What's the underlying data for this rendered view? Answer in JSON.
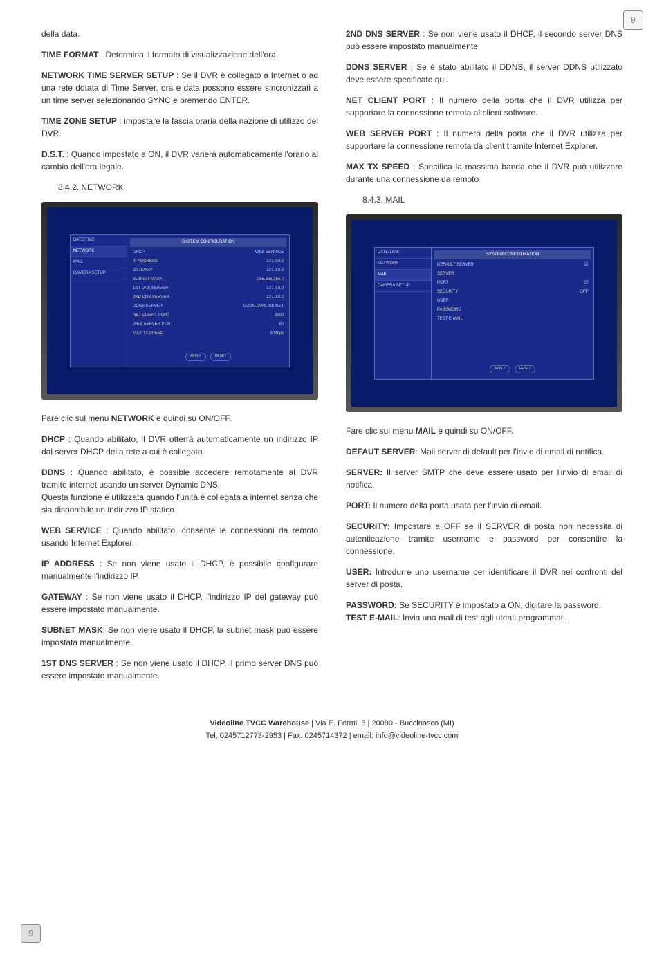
{
  "page_number": "9",
  "col1": {
    "p1": "della data.",
    "p2a": "TIME FORMAT",
    "p2b": " : Determina il formato di visualizzazione dell'ora.",
    "p3a": "NETWORK TIME SERVER SETUP",
    "p3b": " : Se il DVR è collegato a Internet o ad una rete dotata di Time Server, ora e data possono essere sincronizzati a un time server selezionando SYNC e premendo ENTER.",
    "p4a": "TIME ZONE SETUP",
    "p4b": " : impostare la fascia oraria della nazione di utilizzo del DVR",
    "p5a": "D.S.T.",
    "p5b": " : Quando impostato a ON, il DVR varierà automaticamente l'orario al cambio dell'ora legale.",
    "sec1": "8.4.2. NETWORK",
    "screenshot1": {
      "side": [
        "DATE/TIME",
        "NETWORK",
        "MAIL",
        "CAMERA SETUP"
      ],
      "selected": 1,
      "header": "SYSTEM CONFIGURATION",
      "toprow": [
        "DHCP",
        "WEB SERVICE"
      ],
      "rows": [
        [
          "IP ADDRESS",
          "127.0.0.2"
        ],
        [
          "GATEWAY",
          "127.0.0.2"
        ],
        [
          "SUBNET MASK",
          "255.255.255.0"
        ],
        [
          "1ST DNS SERVER",
          "127.0.0.2"
        ],
        [
          "2ND DNS SERVER",
          "127.0.0.2"
        ],
        [
          "DDNS SERVER",
          "OZDN.DVRLINK.NET"
        ],
        [
          "NET CLIENT PORT",
          "6100"
        ],
        [
          "WEB SERVER PORT",
          "80"
        ],
        [
          "MAX TX SPEED",
          "8 Mbps"
        ]
      ],
      "btns": [
        "APPLY",
        "RESET"
      ]
    },
    "p6a": "Fare clic sul menu ",
    "p6b": "NETWORK",
    "p6c": " e quindi su ON/OFF.",
    "p7a": "DHCP",
    "p7b": " : Quando abilitato, il DVR otterrà automaticamente un indirizzo IP dal server DHCP della rete a cui è collegato.",
    "p8a": "DDNS",
    "p8b": " : Quando abilitato, è possible accedere remotamente al DVR tramite internet usando un server Dynamic DNS.",
    "p8c": "Questa funzione è utilizzata quando l'unità è collegata a internet senza che sia disponibile un indirizzo IP statico",
    "p9a": "WEB SERVICE",
    "p9b": " : Quando abilitato, consente le connessioni da remoto usando Internet Explorer.",
    "p10a": "IP ADDRESS",
    "p10b": " : Se non viene usato il DHCP, è possibile configurare manualmente l'indirizzo IP.",
    "p11a": "GATEWAY",
    "p11b": " : Se non viene usato il DHCP, l'indirizzo IP del gateway può essere impostato manualmente.",
    "p12a": "SUBNET MASK",
    "p12b": ": Se non viene usato il DHCP, la subnet mask può essere impostata manualmente.",
    "p13a": "1ST DNS SERVER",
    "p13b": " : Se non viene usato il DHCP, il primo server DNS può essere impostato manualmente."
  },
  "col2": {
    "p1a": "2ND DNS SERVER",
    "p1b": " : Se non viene usato il DHCP, il secondo server DNS può essere impostato manualmente",
    "p2a": "DDNS SERVER",
    "p2b": " : Se è stato abilitato il DDNS, il server DDNS utilizzato deve essere specificato qui.",
    "p3a": "NET CLIENT PORT",
    "p3b": " : Il numero della porta che il DVR utilizza per supportare la connessione remota al client software.",
    "p4a": "WEB SERVER PORT",
    "p4b": " : Il numero della porta che il DVR utilizza per supportare la connessione remota da client tramite Internet Explorer.",
    "p5a": "MAX TX SPEED",
    "p5b": " : Specifica la massima banda che il DVR può utilizzare durante una connessione da remoto",
    "sec2": "8.4.3. MAIL",
    "screenshot2": {
      "side": [
        "DATE/TIME",
        "NETWORK",
        "MAIL",
        "CAMERA SETUP"
      ],
      "selected": 2,
      "header": "SYSTEM CONFIGURATION",
      "rows": [
        [
          "DEFAULT SERVER",
          "☑"
        ],
        [
          "SERVER",
          ""
        ],
        [
          "PORT",
          "25"
        ],
        [
          "SECURITY",
          "OFF"
        ],
        [
          "USER",
          ""
        ],
        [
          "PASSWORD",
          ""
        ],
        [
          "TEST E-MAIL",
          ""
        ]
      ],
      "btns": [
        "APPLY",
        "RESET"
      ]
    },
    "p6a": "Fare clic sul menu ",
    "p6b": "MAIL",
    "p6c": " e quindi su ON/OFF.",
    "p7a": "DEFAUT SERVER",
    "p7b": ": Mail server di default per l'invio di email di notifica.",
    "p8a": "SERVER:",
    "p8b": " Il server SMTP che deve essere usato per l'invio di email di notifica.",
    "p9a": "PORT:",
    "p9b": " Il numero della porta usata per l'invio di email.",
    "p10a": "SECURITY:",
    "p10b": " Impostare a OFF se il SERVER di posta non necessita di autenticazione tramite username e password per consentire la connessione.",
    "p11a": "USER:",
    "p11b": " Introdurre uno username per identificare il DVR nei confronti del server di posta.",
    "p12a": "PASSWORD:",
    "p12b": " Se SECURITY è impostato a ON, digitare la password.",
    "p13a": "TEST E-MAIL",
    "p13b": ": Invia una mail di test agli utenti programmati."
  },
  "footer": {
    "line1a": "Videoline TVCC Warehouse",
    "line1b": " | Via E. Fermi, 3 | 20090 - Buccinasco (MI)",
    "line2": "Tel: 0245712773-2953 | Fax: 0245714372 | email: info@videoline-tvcc.com"
  }
}
